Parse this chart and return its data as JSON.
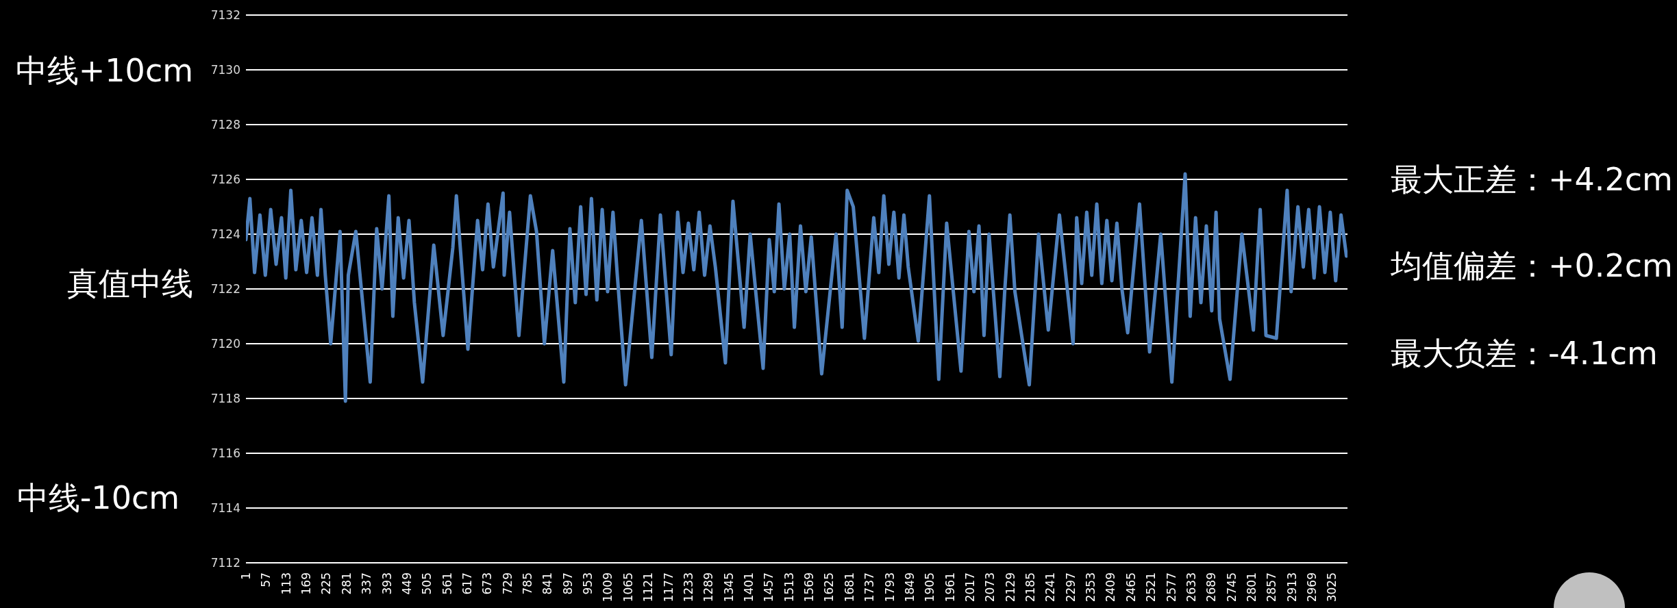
{
  "chart_data": {
    "type": "line",
    "x": [
      1,
      12,
      25,
      40,
      55,
      70,
      85,
      100,
      112,
      126,
      140,
      155,
      170,
      185,
      200,
      210,
      222,
      237,
      263,
      278,
      286,
      307,
      347,
      365,
      380,
      399,
      410,
      425,
      440,
      455,
      470,
      493,
      524,
      550,
      577,
      587,
      619,
      646,
      660,
      675,
      690,
      717,
      720,
      735,
      761,
      793,
      810,
      832,
      855,
      886,
      903,
      918,
      933,
      948,
      963,
      978,
      993,
      1008,
      1023,
      1035,
      1058,
      1102,
      1131,
      1155,
      1185,
      1203,
      1218,
      1233,
      1248,
      1263,
      1278,
      1293,
      1308,
      1336,
      1357,
      1388,
      1405,
      1441,
      1458,
      1472,
      1485,
      1500,
      1515,
      1528,
      1545,
      1560,
      1575,
      1604,
      1644,
      1661,
      1675,
      1692,
      1723,
      1749,
      1763,
      1777,
      1791,
      1805,
      1819,
      1833,
      1845,
      1873,
      1904,
      1930,
      1952,
      1992,
      2014,
      2028,
      2042,
      2056,
      2070,
      2100,
      2114,
      2128,
      2142,
      2182,
      2208,
      2235,
      2266,
      2304,
      2314,
      2328,
      2342,
      2356,
      2370,
      2384,
      2398,
      2412,
      2426,
      2440,
      2456,
      2489,
      2517,
      2548,
      2579,
      2616,
      2630,
      2645,
      2660,
      2675,
      2690,
      2702,
      2712,
      2741,
      2774,
      2806,
      2825,
      2841,
      2870,
      2900,
      2911,
      2930,
      2945,
      2960,
      2975,
      2990,
      3005,
      3020,
      3035,
      3050,
      3065
    ],
    "series": [
      {
        "color": "#4f81bd",
        "values": [
          7123.8,
          7125.3,
          7122.6,
          7124.7,
          7122.5,
          7124.9,
          7122.9,
          7124.6,
          7122.4,
          7125.6,
          7122.7,
          7124.5,
          7122.6,
          7124.6,
          7122.5,
          7124.9,
          7122.5,
          7120.0,
          7124.1,
          7117.9,
          7122.5,
          7124.1,
          7118.6,
          7124.2,
          7122.0,
          7125.4,
          7121.0,
          7124.6,
          7122.4,
          7124.5,
          7121.5,
          7118.6,
          7123.6,
          7120.3,
          7123.5,
          7125.4,
          7119.8,
          7124.5,
          7122.7,
          7125.1,
          7122.8,
          7125.5,
          7122.5,
          7124.8,
          7120.3,
          7125.4,
          7124.1,
          7120.0,
          7123.4,
          7118.6,
          7124.2,
          7121.5,
          7125.0,
          7121.8,
          7125.3,
          7121.6,
          7124.9,
          7121.9,
          7124.8,
          7122.5,
          7118.5,
          7124.5,
          7119.5,
          7124.7,
          7119.6,
          7124.8,
          7122.6,
          7124.4,
          7122.7,
          7124.8,
          7122.5,
          7124.3,
          7122.8,
          7119.3,
          7125.2,
          7120.6,
          7124.0,
          7119.1,
          7123.8,
          7121.9,
          7125.1,
          7122.0,
          7124.0,
          7120.6,
          7124.3,
          7121.9,
          7123.9,
          7118.9,
          7124.0,
          7120.6,
          7125.6,
          7125.0,
          7120.2,
          7124.6,
          7122.6,
          7125.4,
          7122.9,
          7124.8,
          7122.4,
          7124.7,
          7122.8,
          7120.1,
          7125.4,
          7118.7,
          7124.4,
          7119.0,
          7124.1,
          7121.9,
          7124.3,
          7120.3,
          7124.0,
          7118.8,
          7122.0,
          7124.7,
          7121.9,
          7118.5,
          7124.0,
          7120.5,
          7124.7,
          7120.0,
          7124.6,
          7122.2,
          7124.8,
          7122.5,
          7125.1,
          7122.2,
          7124.5,
          7122.3,
          7124.4,
          7122.0,
          7120.4,
          7125.1,
          7119.7,
          7124.0,
          7118.6,
          7126.2,
          7121.0,
          7124.6,
          7121.5,
          7124.3,
          7121.2,
          7124.8,
          7120.9,
          7118.7,
          7124.0,
          7120.5,
          7124.9,
          7120.3,
          7120.2,
          7125.6,
          7121.9,
          7125.0,
          7122.8,
          7124.9,
          7122.4,
          7125.0,
          7122.6,
          7124.8,
          7122.3,
          7124.7,
          7123.2
        ]
      }
    ],
    "xlim": [
      1,
      3068
    ],
    "xticks": [
      1,
      57,
      113,
      169,
      225,
      281,
      337,
      393,
      449,
      505,
      561,
      617,
      673,
      729,
      785,
      841,
      897,
      953,
      1009,
      1065,
      1121,
      1177,
      1233,
      1289,
      1345,
      1401,
      1457,
      1513,
      1569,
      1625,
      1681,
      1737,
      1793,
      1849,
      1905,
      1961,
      2017,
      2073,
      2129,
      2185,
      2241,
      2297,
      2353,
      2409,
      2465,
      2521,
      2577,
      2633,
      2689,
      2745,
      2801,
      2857,
      2913,
      2969,
      3025
    ],
    "ylim": [
      7112,
      7132
    ],
    "yticks": [
      7112,
      7114,
      7116,
      7118,
      7120,
      7122,
      7124,
      7126,
      7128,
      7130,
      7132
    ],
    "grid": "y",
    "annotations": [
      "中线+10cm",
      "真值中线",
      "中线-10cm",
      "最大正差：+4.2cm",
      "均值偏差：+0.2cm",
      "最大负差：-4.1cm"
    ]
  }
}
